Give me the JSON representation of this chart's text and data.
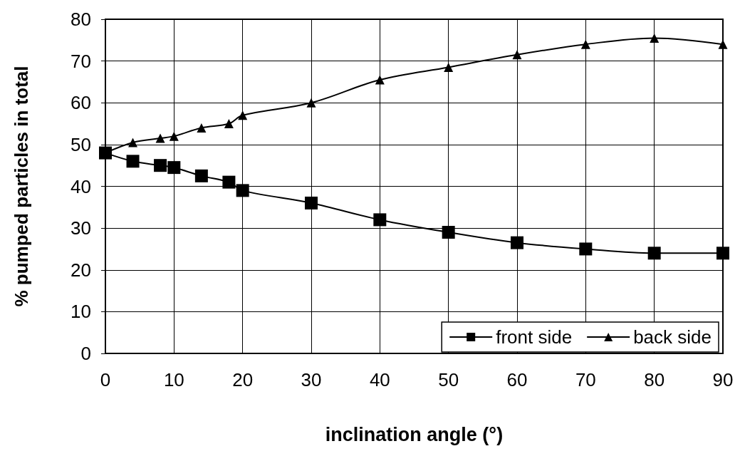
{
  "chart_data": {
    "type": "line",
    "xlabel": "inclination angle (°)",
    "ylabel": "% pumped particles in total",
    "x": [
      0,
      4,
      8,
      10,
      14,
      18,
      20,
      30,
      40,
      50,
      60,
      70,
      80,
      90
    ],
    "series": [
      {
        "name": "front side",
        "color": "#000000",
        "marker": "square",
        "values": [
          48,
          46,
          45,
          44.5,
          42.5,
          41,
          39,
          36,
          32,
          29,
          26.5,
          25,
          24,
          24
        ]
      },
      {
        "name": "back side",
        "color": "#000000",
        "marker": "triangle",
        "values": [
          48,
          50.5,
          51.5,
          52,
          54,
          55,
          57,
          60,
          65.5,
          68.5,
          71.5,
          74,
          75.5,
          74
        ]
      }
    ],
    "xlim": [
      0,
      90
    ],
    "xticks": [
      0,
      10,
      20,
      30,
      40,
      50,
      60,
      70,
      80,
      90
    ],
    "ylim": [
      0,
      80
    ],
    "yticks": [
      0,
      10,
      20,
      30,
      40,
      50,
      60,
      70,
      80
    ],
    "grid": true,
    "legend": "bottom right",
    "line_style": "solid"
  }
}
